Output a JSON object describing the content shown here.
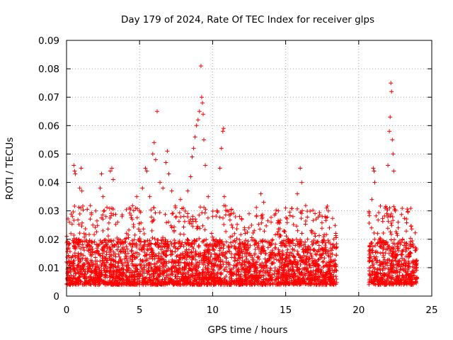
{
  "chart_data": {
    "type": "scatter",
    "title": "Day 179 of 2024, Rate Of TEC Index for receiver glps",
    "xlabel": "GPS time / hours",
    "ylabel": "ROTI / TECUs",
    "xlim": [
      0,
      25
    ],
    "ylim": [
      0,
      0.09
    ],
    "xticks": [
      0,
      5,
      10,
      15,
      20,
      25
    ],
    "xtick_labels": [
      "0",
      "5",
      "10",
      "15",
      "20",
      "25"
    ],
    "yticks": [
      0,
      0.01,
      0.02,
      0.03,
      0.04,
      0.05,
      0.06,
      0.07,
      0.08,
      0.09
    ],
    "ytick_labels": [
      "0",
      "0.01",
      "0.02",
      "0.03",
      "0.04",
      "0.05",
      "0.06",
      "0.07",
      "0.08",
      "0.09"
    ],
    "grid": true,
    "marker": "+",
    "color": "#ff0000",
    "data_gap_hours": [
      18.5,
      20.7
    ],
    "series": [
      {
        "name": "ROTI",
        "points": [
          [
            0.0,
            0.012
          ],
          [
            0.1,
            0.018
          ],
          [
            0.2,
            0.026
          ],
          [
            0.3,
            0.022
          ],
          [
            0.4,
            0.028
          ],
          [
            0.5,
            0.046
          ],
          [
            0.55,
            0.044
          ],
          [
            0.6,
            0.043
          ],
          [
            0.7,
            0.02
          ],
          [
            0.8,
            0.015
          ],
          [
            0.9,
            0.038
          ],
          [
            1.0,
            0.045
          ],
          [
            1.05,
            0.037
          ],
          [
            1.2,
            0.022
          ],
          [
            1.5,
            0.018
          ],
          [
            1.8,
            0.025
          ],
          [
            2.0,
            0.03
          ],
          [
            2.3,
            0.038
          ],
          [
            2.4,
            0.043
          ],
          [
            2.5,
            0.035
          ],
          [
            2.7,
            0.028
          ],
          [
            3.0,
            0.044
          ],
          [
            3.1,
            0.045
          ],
          [
            3.2,
            0.041
          ],
          [
            3.5,
            0.026
          ],
          [
            3.8,
            0.028
          ],
          [
            4.0,
            0.02
          ],
          [
            4.3,
            0.031
          ],
          [
            4.5,
            0.027
          ],
          [
            4.8,
            0.035
          ],
          [
            5.0,
            0.03
          ],
          [
            5.2,
            0.038
          ],
          [
            5.4,
            0.045
          ],
          [
            5.5,
            0.044
          ],
          [
            5.7,
            0.035
          ],
          [
            5.9,
            0.05
          ],
          [
            6.0,
            0.054
          ],
          [
            6.1,
            0.048
          ],
          [
            6.2,
            0.065
          ],
          [
            6.4,
            0.04
          ],
          [
            6.6,
            0.038
          ],
          [
            6.8,
            0.047
          ],
          [
            6.9,
            0.051
          ],
          [
            7.0,
            0.043
          ],
          [
            7.2,
            0.037
          ],
          [
            7.5,
            0.028
          ],
          [
            7.8,
            0.034
          ],
          [
            8.0,
            0.031
          ],
          [
            8.3,
            0.037
          ],
          [
            8.5,
            0.042
          ],
          [
            8.6,
            0.049
          ],
          [
            8.7,
            0.052
          ],
          [
            8.8,
            0.056
          ],
          [
            8.9,
            0.06
          ],
          [
            9.0,
            0.062
          ],
          [
            9.1,
            0.065
          ],
          [
            9.2,
            0.081
          ],
          [
            9.25,
            0.07
          ],
          [
            9.3,
            0.068
          ],
          [
            9.35,
            0.064
          ],
          [
            9.4,
            0.055
          ],
          [
            9.5,
            0.046
          ],
          [
            9.7,
            0.035
          ],
          [
            10.0,
            0.028
          ],
          [
            10.3,
            0.03
          ],
          [
            10.5,
            0.045
          ],
          [
            10.6,
            0.052
          ],
          [
            10.7,
            0.058
          ],
          [
            10.75,
            0.059
          ],
          [
            10.8,
            0.035
          ],
          [
            11.0,
            0.03
          ],
          [
            11.3,
            0.025
          ],
          [
            11.5,
            0.022
          ],
          [
            12.0,
            0.027
          ],
          [
            12.5,
            0.029
          ],
          [
            13.0,
            0.028
          ],
          [
            13.3,
            0.036
          ],
          [
            13.5,
            0.033
          ],
          [
            14.0,
            0.026
          ],
          [
            14.3,
            0.029
          ],
          [
            14.5,
            0.03
          ],
          [
            15.0,
            0.031
          ],
          [
            15.5,
            0.028
          ],
          [
            15.8,
            0.036
          ],
          [
            16.0,
            0.045
          ],
          [
            16.1,
            0.04
          ],
          [
            16.5,
            0.02
          ],
          [
            17.0,
            0.022
          ],
          [
            17.5,
            0.028
          ],
          [
            17.8,
            0.031
          ],
          [
            18.0,
            0.024
          ],
          [
            18.3,
            0.02
          ],
          [
            20.9,
            0.034
          ],
          [
            21.0,
            0.045
          ],
          [
            21.05,
            0.044
          ],
          [
            21.1,
            0.04
          ],
          [
            21.3,
            0.022
          ],
          [
            21.5,
            0.02
          ],
          [
            21.8,
            0.031
          ],
          [
            22.0,
            0.046
          ],
          [
            22.1,
            0.058
          ],
          [
            22.15,
            0.063
          ],
          [
            22.2,
            0.075
          ],
          [
            22.25,
            0.072
          ],
          [
            22.3,
            0.055
          ],
          [
            22.35,
            0.05
          ],
          [
            22.4,
            0.044
          ],
          [
            22.5,
            0.03
          ],
          [
            22.7,
            0.024
          ],
          [
            23.0,
            0.02
          ],
          [
            23.5,
            0.018
          ],
          [
            23.9,
            0.016
          ]
        ]
      }
    ],
    "background_band": {
      "description": "dense cloud of markers between approx. 0.004 and 0.02 TECUs covering 0–18.5 h and 20.7–24 h",
      "ymin": 0.004,
      "ymax": 0.02
    }
  }
}
